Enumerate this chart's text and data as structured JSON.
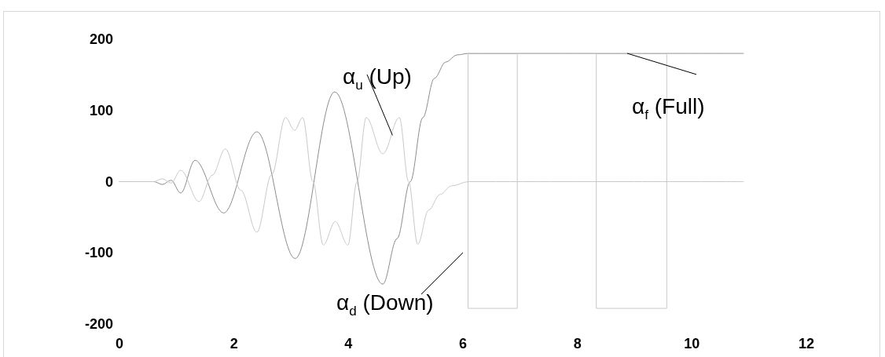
{
  "chart_data": {
    "type": "line",
    "xlim": [
      0,
      12
    ],
    "xticks": [
      0,
      2,
      4,
      6,
      8,
      10,
      12
    ],
    "ylim": [
      -200,
      200
    ],
    "yticks": [
      -200,
      -100,
      0,
      100,
      200
    ],
    "grid": false,
    "marker": "none",
    "line_style": "solid",
    "series": [
      {
        "color": "#8c8c8c",
        "x": [
          0,
          0.6,
          0.75,
          0.9,
          1.07,
          1.32,
          1.82,
          2.4,
          3.07,
          3.76,
          4.6,
          4.85,
          5.08,
          5.3,
          5.5,
          5.7,
          5.9,
          6.09,
          8,
          10.9
        ],
        "values": [
          0,
          0,
          -4,
          2,
          -16,
          30,
          -44,
          70,
          -108,
          126,
          -144,
          -80,
          0,
          90,
          145,
          168,
          178,
          180,
          180,
          180
        ]
      },
      {
        "color": "#c8c8c8",
        "x": [
          0,
          0.6,
          0.75,
          0.9,
          1.07,
          1.39,
          1.62,
          1.85,
          2.12,
          2.4,
          2.66,
          2.9,
          3.06,
          3.2,
          3.38,
          3.56,
          3.77,
          3.99,
          4.15,
          4.31,
          4.6,
          4.89,
          5.05,
          5.21,
          5.4,
          5.6,
          5.8,
          6.1,
          8,
          10.9
        ],
        "values": [
          0,
          0,
          4,
          -2,
          16,
          -28,
          9,
          46,
          -12,
          -71,
          10,
          90,
          72,
          90,
          0,
          -89,
          -56,
          -89,
          0,
          90,
          39,
          90,
          0,
          -88,
          -40,
          -18,
          -6,
          0,
          0,
          0
        ]
      },
      {
        "color": "#c8c8c8",
        "x": [
          6.09,
          6.09,
          6.95,
          6.95,
          8.33,
          8.33,
          9.56,
          9.56,
          10.9
        ],
        "values": [
          180,
          -178,
          -178,
          180,
          180,
          -178,
          -178,
          180,
          180
        ]
      }
    ],
    "annotations": [
      {
        "text": "α$_{u}$ (Up)",
        "x": 4.77,
        "y": 65
      },
      "α$_{d}$ (Down)",
      {
        "text": "α$_{f}$ (Full)",
        "x": 8.87,
        "y": 180
      }
    ]
  }
}
